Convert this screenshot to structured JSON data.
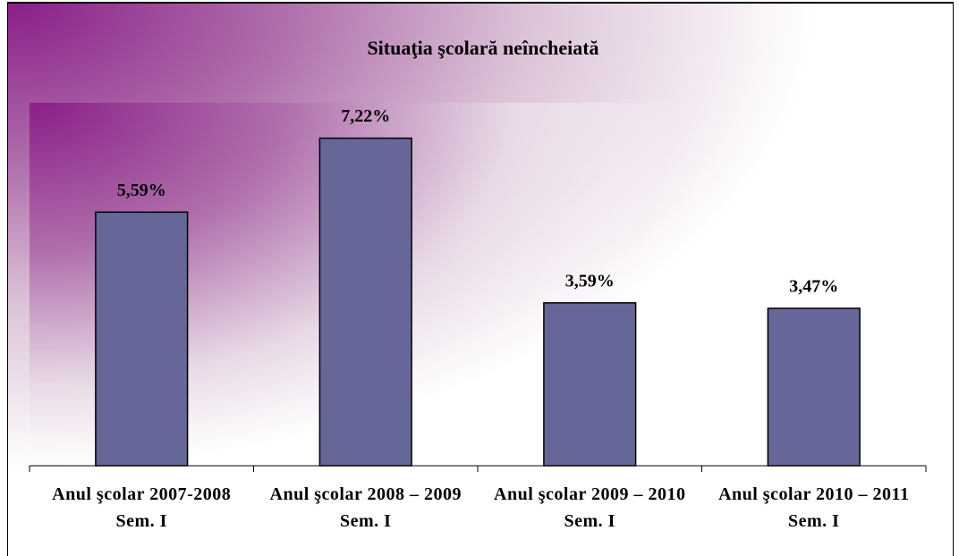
{
  "chart_data": {
    "type": "bar",
    "title": "Situaţia şcolară neîncheiată",
    "categories": [
      "Anul şcolar 2007-2008 Sem. I",
      "Anul şcolar 2008 – 2009 Sem. I",
      "Anul şcolar 2009 – 2010 Sem. I",
      "Anul şcolar 2010 – 2011 Sem. I"
    ],
    "values": [
      5.59,
      7.22,
      3.59,
      3.47
    ],
    "value_labels": [
      "5,59%",
      "7,22%",
      "3,59%",
      "3,47%"
    ],
    "color": "#666699",
    "ylim": [
      0,
      8
    ]
  }
}
